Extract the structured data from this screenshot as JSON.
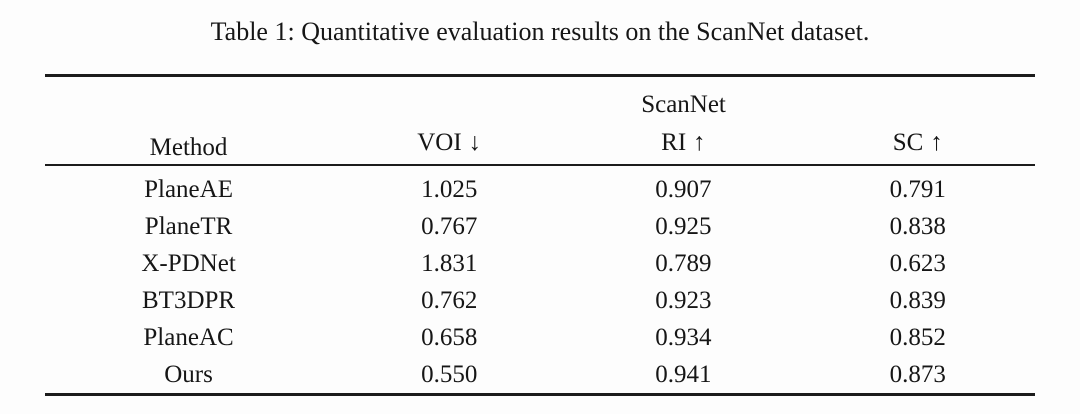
{
  "caption": "Table 1: Quantitative evaluation results on the ScanNet dataset.",
  "table": {
    "method_header": "Method",
    "group_header": "ScanNet",
    "columns": [
      {
        "label": "VOI",
        "arrow": "↓",
        "direction": "lower-is-better"
      },
      {
        "label": "RI",
        "arrow": "↑",
        "direction": "higher-is-better"
      },
      {
        "label": "SC",
        "arrow": "↑",
        "direction": "higher-is-better"
      }
    ],
    "rows": [
      {
        "method": "PlaneAE",
        "voi": "1.025",
        "ri": "0.907",
        "sc": "0.791",
        "bold": false
      },
      {
        "method": "PlaneTR",
        "voi": "0.767",
        "ri": "0.925",
        "sc": "0.838",
        "bold": false
      },
      {
        "method": "X-PDNet",
        "voi": "1.831",
        "ri": "0.789",
        "sc": "0.623",
        "bold": false
      },
      {
        "method": "BT3DPR",
        "voi": "0.762",
        "ri": "0.923",
        "sc": "0.839",
        "bold": false
      },
      {
        "method": "PlaneAC",
        "voi": "0.658",
        "ri": "0.934",
        "sc": "0.852",
        "bold": false
      },
      {
        "method": "Ours",
        "voi": "0.550",
        "ri": "0.941",
        "sc": "0.873",
        "bold": true
      }
    ]
  },
  "colors": {
    "text": "#161616",
    "rule": "#1c1c1c",
    "background": "#fdfdfd"
  }
}
